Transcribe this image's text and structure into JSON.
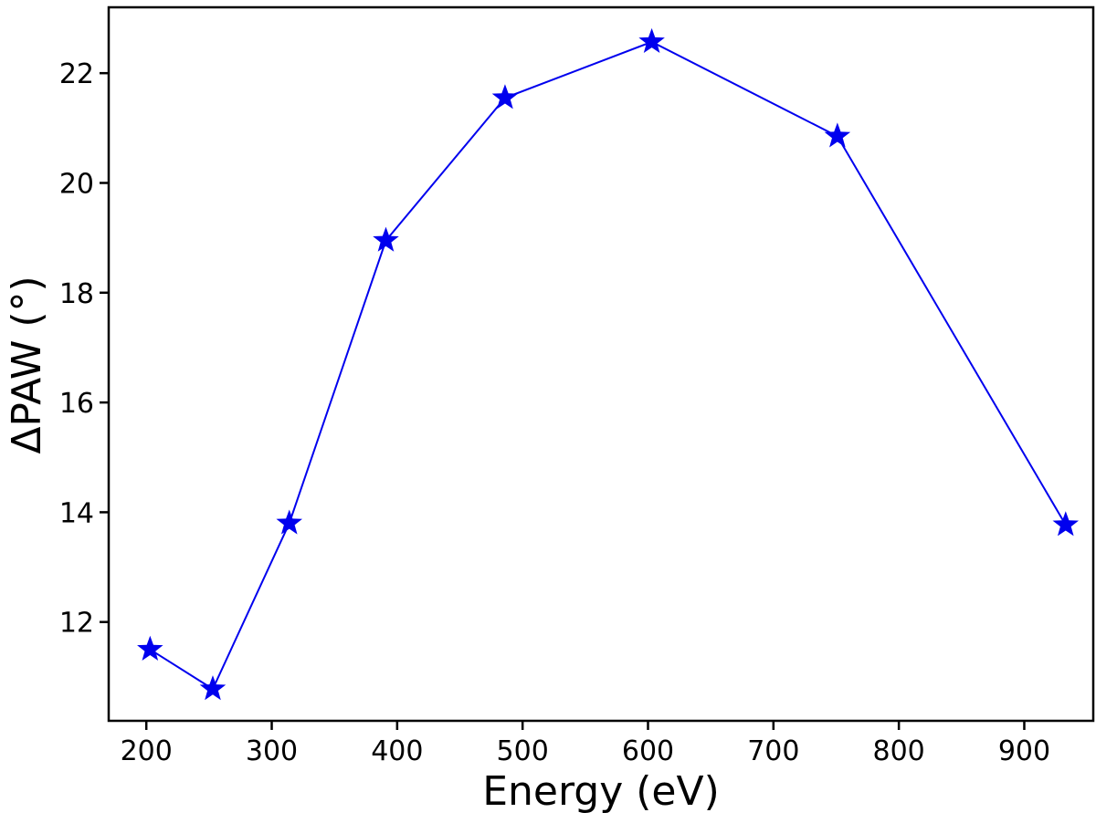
{
  "chart_data": {
    "type": "line",
    "title": "",
    "xlabel": "Energy (eV)",
    "ylabel": "ΔPAW (°)",
    "xlim": [
      170,
      955
    ],
    "ylim": [
      10.2,
      23.2
    ],
    "xticks": [
      200,
      300,
      400,
      500,
      600,
      700,
      800,
      900
    ],
    "xtick_labels": [
      "200",
      "300",
      "400",
      "500",
      "600",
      "700",
      "800",
      "900"
    ],
    "yticks": [
      12,
      14,
      16,
      18,
      20,
      22
    ],
    "ytick_labels": [
      "12",
      "14",
      "16",
      "18",
      "20",
      "22"
    ],
    "grid": false,
    "series": [
      {
        "name": "ΔPAW",
        "marker": "star",
        "color": "#0000ee",
        "x": [
          203,
          253,
          314,
          391,
          486,
          603,
          751,
          933
        ],
        "values": [
          11.5,
          10.78,
          13.8,
          18.95,
          21.55,
          22.57,
          20.85,
          13.77
        ]
      }
    ]
  }
}
